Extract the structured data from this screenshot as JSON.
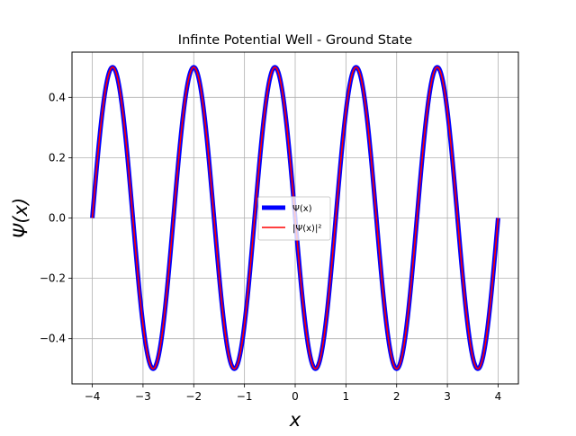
{
  "chart_data": {
    "type": "line",
    "title": "Infinte Potential Well - Ground State",
    "xlabel": "x",
    "ylabel": "Ψ(x)",
    "xlim": [
      -4.4,
      4.4
    ],
    "ylim": [
      -0.55,
      0.55
    ],
    "xticks": [
      -4,
      -3,
      -2,
      -1,
      0,
      1,
      2,
      3,
      4
    ],
    "xtick_labels": [
      "−4",
      "−3",
      "−2",
      "−1",
      "0",
      "1",
      "2",
      "3",
      "4"
    ],
    "yticks": [
      -0.4,
      -0.2,
      0.0,
      0.2,
      0.4
    ],
    "ytick_labels": [
      "−0.4",
      "−0.2",
      "0.0",
      "0.2",
      "0.4"
    ],
    "grid": true,
    "legend_position": "center",
    "series": [
      {
        "name": "Ψ(x)",
        "color": "#0000ff",
        "style": "thick-line",
        "function": "0.5*sin(10*pi*(x+4)/8)",
        "x_range": [
          -4,
          4
        ]
      },
      {
        "name": "|Ψ(x)|²",
        "color": "#ff0000",
        "style": "thin-line",
        "function": "0.5*sin(10*pi*(x+4)/8)",
        "x_range": [
          -4,
          4
        ]
      }
    ],
    "peaks": [
      {
        "x": -3.6,
        "y": 0.5
      },
      {
        "x": -2.8,
        "y": -0.5
      },
      {
        "x": -2.0,
        "y": 0.5
      },
      {
        "x": -1.2,
        "y": -0.5
      },
      {
        "x": -0.4,
        "y": 0.5
      },
      {
        "x": 0.4,
        "y": -0.5
      },
      {
        "x": 1.2,
        "y": 0.5
      },
      {
        "x": 2.0,
        "y": -0.5
      },
      {
        "x": 2.8,
        "y": 0.5
      },
      {
        "x": 3.6,
        "y": -0.5
      }
    ]
  }
}
